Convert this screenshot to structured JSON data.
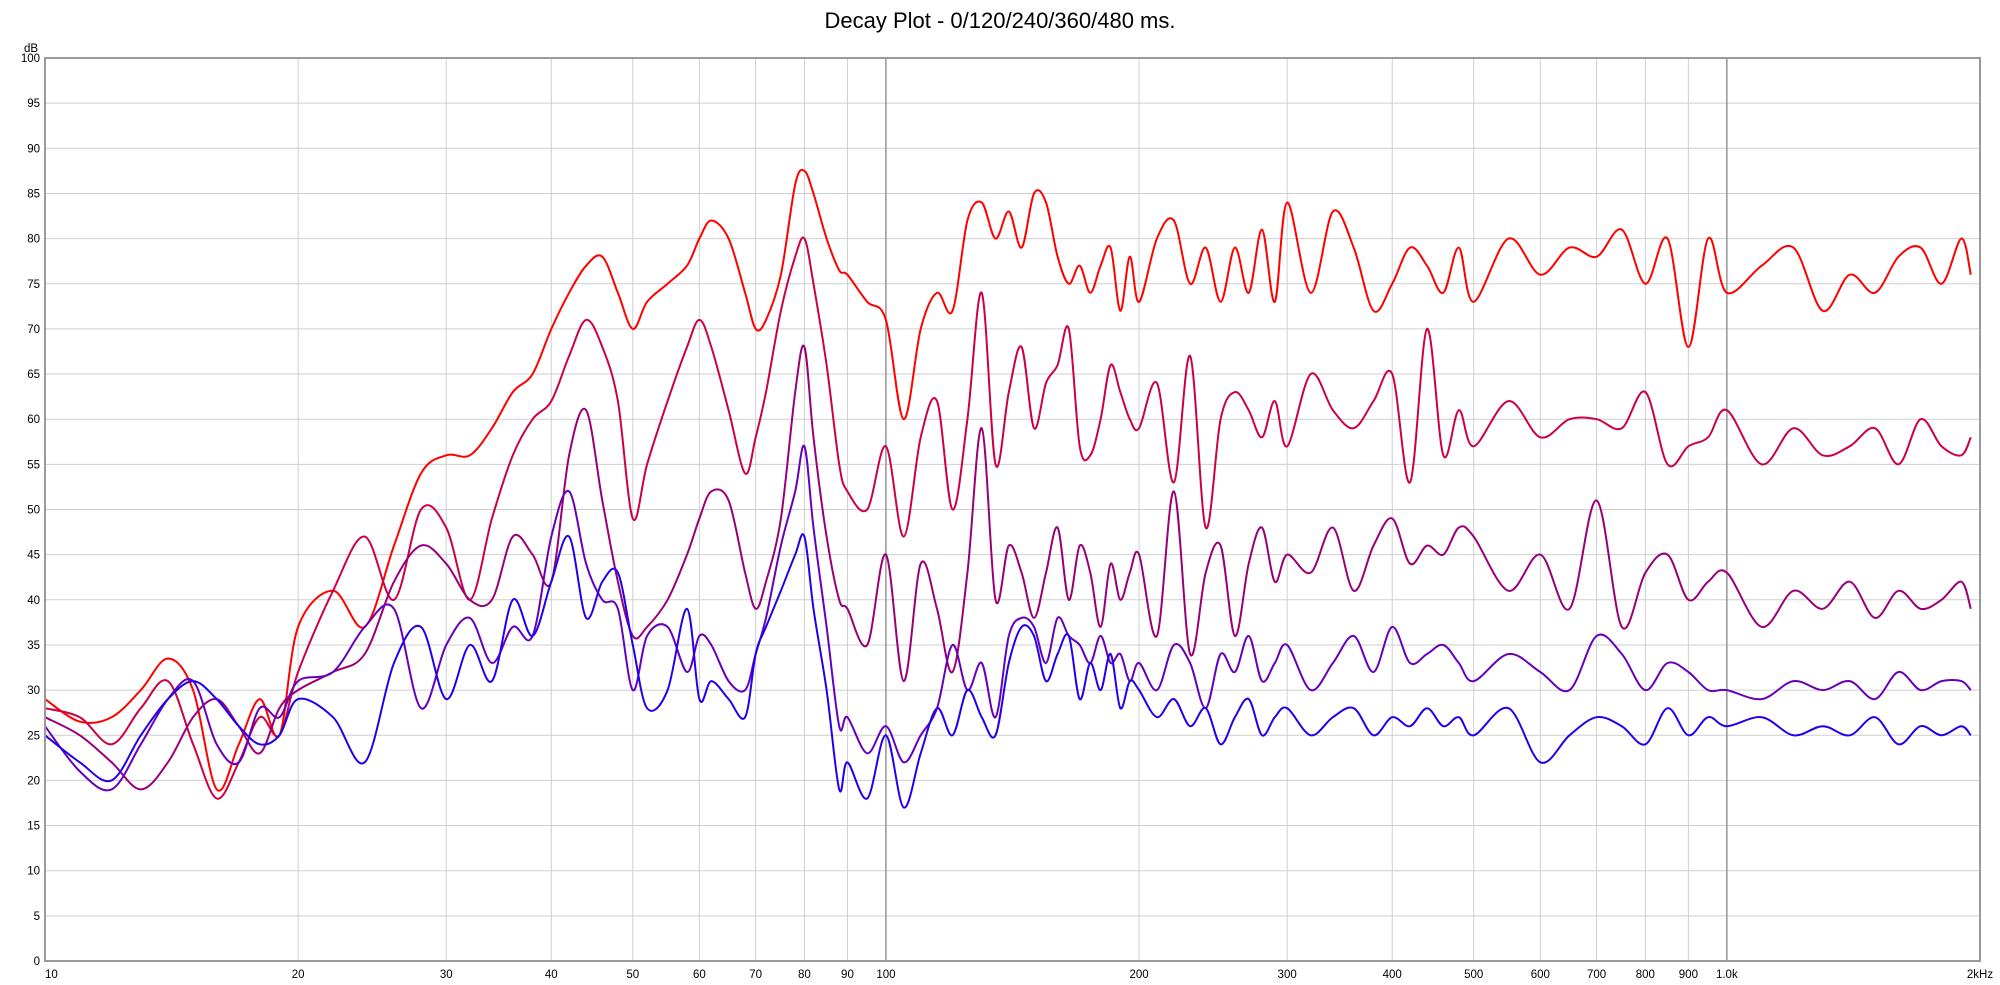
{
  "chart_data": {
    "type": "line",
    "title": "Decay Plot - 0/120/240/360/480 ms.",
    "x_scale": "log",
    "xlim": [
      10,
      2000
    ],
    "ylim": [
      0,
      100
    ],
    "y_unit_label": "dB",
    "x_unit_label": "2kHz",
    "y_ticks": [
      "0",
      "5",
      "10",
      "15",
      "20",
      "25",
      "30",
      "35",
      "40",
      "45",
      "50",
      "55",
      "60",
      "65",
      "70",
      "75",
      "80",
      "85",
      "90",
      "95",
      "100"
    ],
    "x_ticks": [
      {
        "value": 10,
        "label": "10"
      },
      {
        "value": 20,
        "label": "20"
      },
      {
        "value": 30,
        "label": "30"
      },
      {
        "value": 40,
        "label": "40"
      },
      {
        "value": 50,
        "label": "50"
      },
      {
        "value": 60,
        "label": "60"
      },
      {
        "value": 70,
        "label": "70"
      },
      {
        "value": 80,
        "label": "80"
      },
      {
        "value": 90,
        "label": "90"
      },
      {
        "value": 100,
        "label": "100"
      },
      {
        "value": 200,
        "label": "200"
      },
      {
        "value": 300,
        "label": "300"
      },
      {
        "value": 400,
        "label": "400"
      },
      {
        "value": 500,
        "label": "500"
      },
      {
        "value": 600,
        "label": "600"
      },
      {
        "value": 700,
        "label": "700"
      },
      {
        "value": 800,
        "label": "800"
      },
      {
        "value": 900,
        "label": "900"
      },
      {
        "value": 1000,
        "label": "1.0k"
      }
    ],
    "grid": true,
    "colors": [
      "#ff0000",
      "#cc0044",
      "#990077",
      "#6600bb",
      "#2200ee"
    ],
    "series": [
      {
        "x": [
          10,
          11,
          12,
          13,
          14,
          15,
          16,
          17,
          18,
          19,
          20,
          22,
          24,
          26,
          28,
          30,
          32,
          34,
          36,
          38,
          40,
          42,
          44,
          46,
          48,
          50,
          52,
          55,
          58,
          60,
          62,
          65,
          68,
          70,
          72,
          75,
          78,
          80,
          82,
          85,
          88,
          90,
          95,
          100,
          105,
          110,
          115,
          120,
          125,
          130,
          135,
          140,
          145,
          150,
          155,
          160,
          165,
          170,
          175,
          180,
          185,
          190,
          195,
          200,
          210,
          220,
          230,
          240,
          250,
          260,
          270,
          280,
          290,
          300,
          320,
          340,
          360,
          380,
          400,
          420,
          440,
          460,
          480,
          500,
          550,
          600,
          650,
          700,
          750,
          800,
          850,
          900,
          950,
          1000,
          1100,
          1200,
          1300,
          1400,
          1500,
          1600,
          1700,
          1800,
          1900,
          1950
        ],
        "y": [
          29,
          26.5,
          27,
          30,
          33.5,
          30,
          19,
          24,
          29,
          25,
          37,
          41,
          37,
          46,
          54,
          56,
          56,
          59,
          63,
          65,
          70,
          74,
          77,
          78,
          74,
          70,
          73,
          75,
          77,
          80,
          82,
          80,
          74,
          70,
          71,
          76,
          86,
          87.5,
          85,
          80,
          76.5,
          76,
          73,
          71,
          60,
          70,
          74,
          72,
          82,
          84,
          80,
          83,
          79,
          85,
          84,
          78,
          75,
          77,
          74,
          77,
          79,
          72,
          78,
          73,
          80,
          82,
          75,
          79,
          73,
          79,
          74,
          81,
          73,
          84,
          74,
          83,
          79,
          72,
          75,
          79,
          77,
          74,
          79,
          73,
          80,
          76,
          79,
          78,
          81,
          75,
          80,
          68,
          80,
          74,
          77,
          79,
          72,
          76,
          74,
          78,
          79,
          75,
          80,
          76
        ]
      },
      {
        "x": [
          10,
          11,
          12,
          13,
          14,
          15,
          16,
          17,
          18,
          19,
          20,
          22,
          24,
          26,
          28,
          30,
          32,
          34,
          36,
          38,
          40,
          42,
          44,
          46,
          48,
          50,
          52,
          55,
          58,
          60,
          62,
          65,
          68,
          70,
          72,
          75,
          78,
          80,
          82,
          85,
          88,
          90,
          95,
          100,
          105,
          110,
          115,
          120,
          125,
          130,
          135,
          140,
          145,
          150,
          155,
          160,
          165,
          170,
          175,
          180,
          185,
          190,
          195,
          200,
          210,
          220,
          230,
          240,
          250,
          260,
          270,
          280,
          290,
          300,
          320,
          340,
          360,
          380,
          400,
          420,
          440,
          460,
          480,
          500,
          550,
          600,
          650,
          700,
          750,
          800,
          850,
          900,
          950,
          1000,
          1100,
          1200,
          1300,
          1400,
          1500,
          1600,
          1700,
          1800,
          1900,
          1950
        ],
        "y": [
          28,
          27,
          24,
          28,
          31,
          24,
          18,
          22,
          27,
          25,
          32,
          41,
          47,
          40,
          50,
          48,
          40,
          49,
          56,
          60,
          62,
          67,
          71,
          68,
          62,
          49,
          55,
          62,
          68,
          71,
          68,
          61,
          54,
          58,
          63,
          72,
          78,
          80,
          75,
          66,
          55,
          52,
          50,
          57,
          47,
          58,
          62,
          50,
          60,
          74,
          55,
          63,
          68,
          59,
          64,
          66,
          70,
          57,
          56,
          60,
          66,
          63,
          60,
          59,
          64,
          53,
          67,
          48,
          60,
          63,
          61,
          58,
          62,
          57,
          65,
          61,
          59,
          62,
          65,
          53,
          70,
          56,
          61,
          57,
          62,
          58,
          60,
          60,
          59,
          63,
          55,
          57,
          58,
          61,
          55,
          59,
          56,
          57,
          59,
          55,
          60,
          57,
          56,
          58
        ]
      },
      {
        "x": [
          10,
          11,
          12,
          13,
          14,
          15,
          16,
          17,
          18,
          19,
          20,
          22,
          24,
          26,
          28,
          30,
          32,
          34,
          36,
          38,
          40,
          42,
          44,
          46,
          48,
          50,
          52,
          55,
          58,
          60,
          62,
          65,
          68,
          70,
          72,
          75,
          78,
          80,
          82,
          85,
          88,
          90,
          95,
          100,
          105,
          110,
          115,
          120,
          125,
          130,
          135,
          140,
          145,
          150,
          155,
          160,
          165,
          170,
          175,
          180,
          185,
          190,
          195,
          200,
          210,
          220,
          230,
          240,
          250,
          260,
          270,
          280,
          290,
          300,
          320,
          340,
          360,
          380,
          400,
          420,
          440,
          460,
          480,
          500,
          550,
          600,
          650,
          700,
          750,
          800,
          850,
          900,
          950,
          1000,
          1100,
          1200,
          1300,
          1400,
          1500,
          1600,
          1700,
          1800,
          1900,
          1950
        ],
        "y": [
          27,
          25,
          22,
          19,
          22,
          27,
          29,
          26,
          23,
          28,
          30,
          32,
          34,
          42,
          46,
          44,
          40,
          40,
          47,
          45,
          42,
          56,
          61,
          51,
          42,
          36,
          37,
          40,
          45,
          49,
          52,
          51,
          43,
          39,
          42,
          49,
          63,
          68,
          58,
          47,
          40,
          39,
          35,
          45,
          31,
          44,
          39,
          32,
          43,
          59,
          40,
          46,
          43,
          38,
          43,
          48,
          40,
          46,
          43,
          37,
          44,
          40,
          43,
          45,
          36,
          52,
          34,
          43,
          46,
          36,
          44,
          48,
          42,
          45,
          43,
          48,
          41,
          46,
          49,
          44,
          46,
          45,
          48,
          47,
          41,
          45,
          39,
          51,
          37,
          43,
          45,
          40,
          42,
          43,
          37,
          41,
          39,
          42,
          38,
          41,
          39,
          40,
          42,
          39
        ]
      },
      {
        "x": [
          10,
          11,
          12,
          13,
          14,
          15,
          16,
          17,
          18,
          19,
          20,
          22,
          24,
          26,
          28,
          30,
          32,
          34,
          36,
          38,
          40,
          42,
          44,
          46,
          48,
          50,
          52,
          55,
          58,
          60,
          62,
          65,
          68,
          70,
          72,
          75,
          78,
          80,
          82,
          85,
          88,
          90,
          95,
          100,
          105,
          110,
          115,
          120,
          125,
          130,
          135,
          140,
          145,
          150,
          155,
          160,
          165,
          170,
          175,
          180,
          185,
          190,
          195,
          200,
          210,
          220,
          230,
          240,
          250,
          260,
          270,
          280,
          290,
          300,
          320,
          340,
          360,
          380,
          400,
          420,
          440,
          460,
          480,
          500,
          550,
          600,
          650,
          700,
          750,
          800,
          850,
          900,
          950,
          1000,
          1100,
          1200,
          1300,
          1400,
          1500,
          1600,
          1700,
          1800,
          1900,
          1950
        ],
        "y": [
          26,
          21,
          19,
          24,
          29,
          31,
          24,
          22,
          28,
          27,
          31,
          32,
          37,
          39,
          28,
          35,
          38,
          33,
          37,
          36,
          47,
          52,
          44,
          40,
          39,
          30,
          36,
          37,
          32,
          36,
          35,
          31,
          30,
          34,
          38,
          46,
          52,
          57,
          48,
          37,
          26,
          27,
          23,
          26,
          22,
          25,
          28,
          35,
          30,
          33,
          27,
          36,
          38,
          37,
          33,
          38,
          36,
          35,
          33,
          36,
          33,
          34,
          31,
          33,
          30,
          35,
          33,
          28,
          34,
          32,
          36,
          31,
          33,
          35,
          30,
          33,
          36,
          32,
          37,
          33,
          34,
          35,
          33,
          31,
          34,
          32,
          30,
          36,
          34,
          30,
          33,
          32,
          30,
          30,
          29,
          31,
          30,
          31,
          29,
          32,
          30,
          31,
          31,
          30
        ]
      },
      {
        "x": [
          10,
          11,
          12,
          13,
          14,
          15,
          16,
          17,
          18,
          19,
          20,
          22,
          24,
          26,
          28,
          30,
          32,
          34,
          36,
          38,
          40,
          42,
          44,
          46,
          48,
          50,
          52,
          55,
          58,
          60,
          62,
          65,
          68,
          70,
          72,
          75,
          78,
          80,
          82,
          85,
          88,
          90,
          95,
          100,
          105,
          110,
          115,
          120,
          125,
          130,
          135,
          140,
          145,
          150,
          155,
          160,
          165,
          170,
          175,
          180,
          185,
          190,
          195,
          200,
          210,
          220,
          230,
          240,
          250,
          260,
          270,
          280,
          290,
          300,
          320,
          340,
          360,
          380,
          400,
          420,
          440,
          460,
          480,
          500,
          550,
          600,
          650,
          700,
          750,
          800,
          850,
          900,
          950,
          1000,
          1100,
          1200,
          1300,
          1400,
          1500,
          1600,
          1700,
          1800,
          1900,
          1950
        ],
        "y": [
          25,
          22,
          20,
          25,
          29,
          31,
          29,
          26,
          24,
          25,
          29,
          27,
          22,
          33,
          37,
          29,
          35,
          31,
          40,
          36,
          42,
          47,
          38,
          42,
          43,
          35,
          28,
          30,
          39,
          29,
          31,
          29,
          27,
          34,
          37,
          41,
          45,
          47,
          39,
          30,
          19,
          22,
          18,
          25,
          17,
          23,
          28,
          25,
          30,
          27,
          25,
          33,
          37,
          36,
          31,
          34,
          36,
          29,
          33,
          30,
          34,
          28,
          31,
          30,
          27,
          29,
          26,
          28,
          24,
          27,
          29,
          25,
          27,
          28,
          25,
          27,
          28,
          25,
          27,
          26,
          28,
          26,
          27,
          25,
          28,
          22,
          25,
          27,
          26,
          24,
          28,
          25,
          27,
          26,
          27,
          25,
          26,
          25,
          27,
          24,
          26,
          25,
          26,
          25
        ]
      }
    ]
  }
}
